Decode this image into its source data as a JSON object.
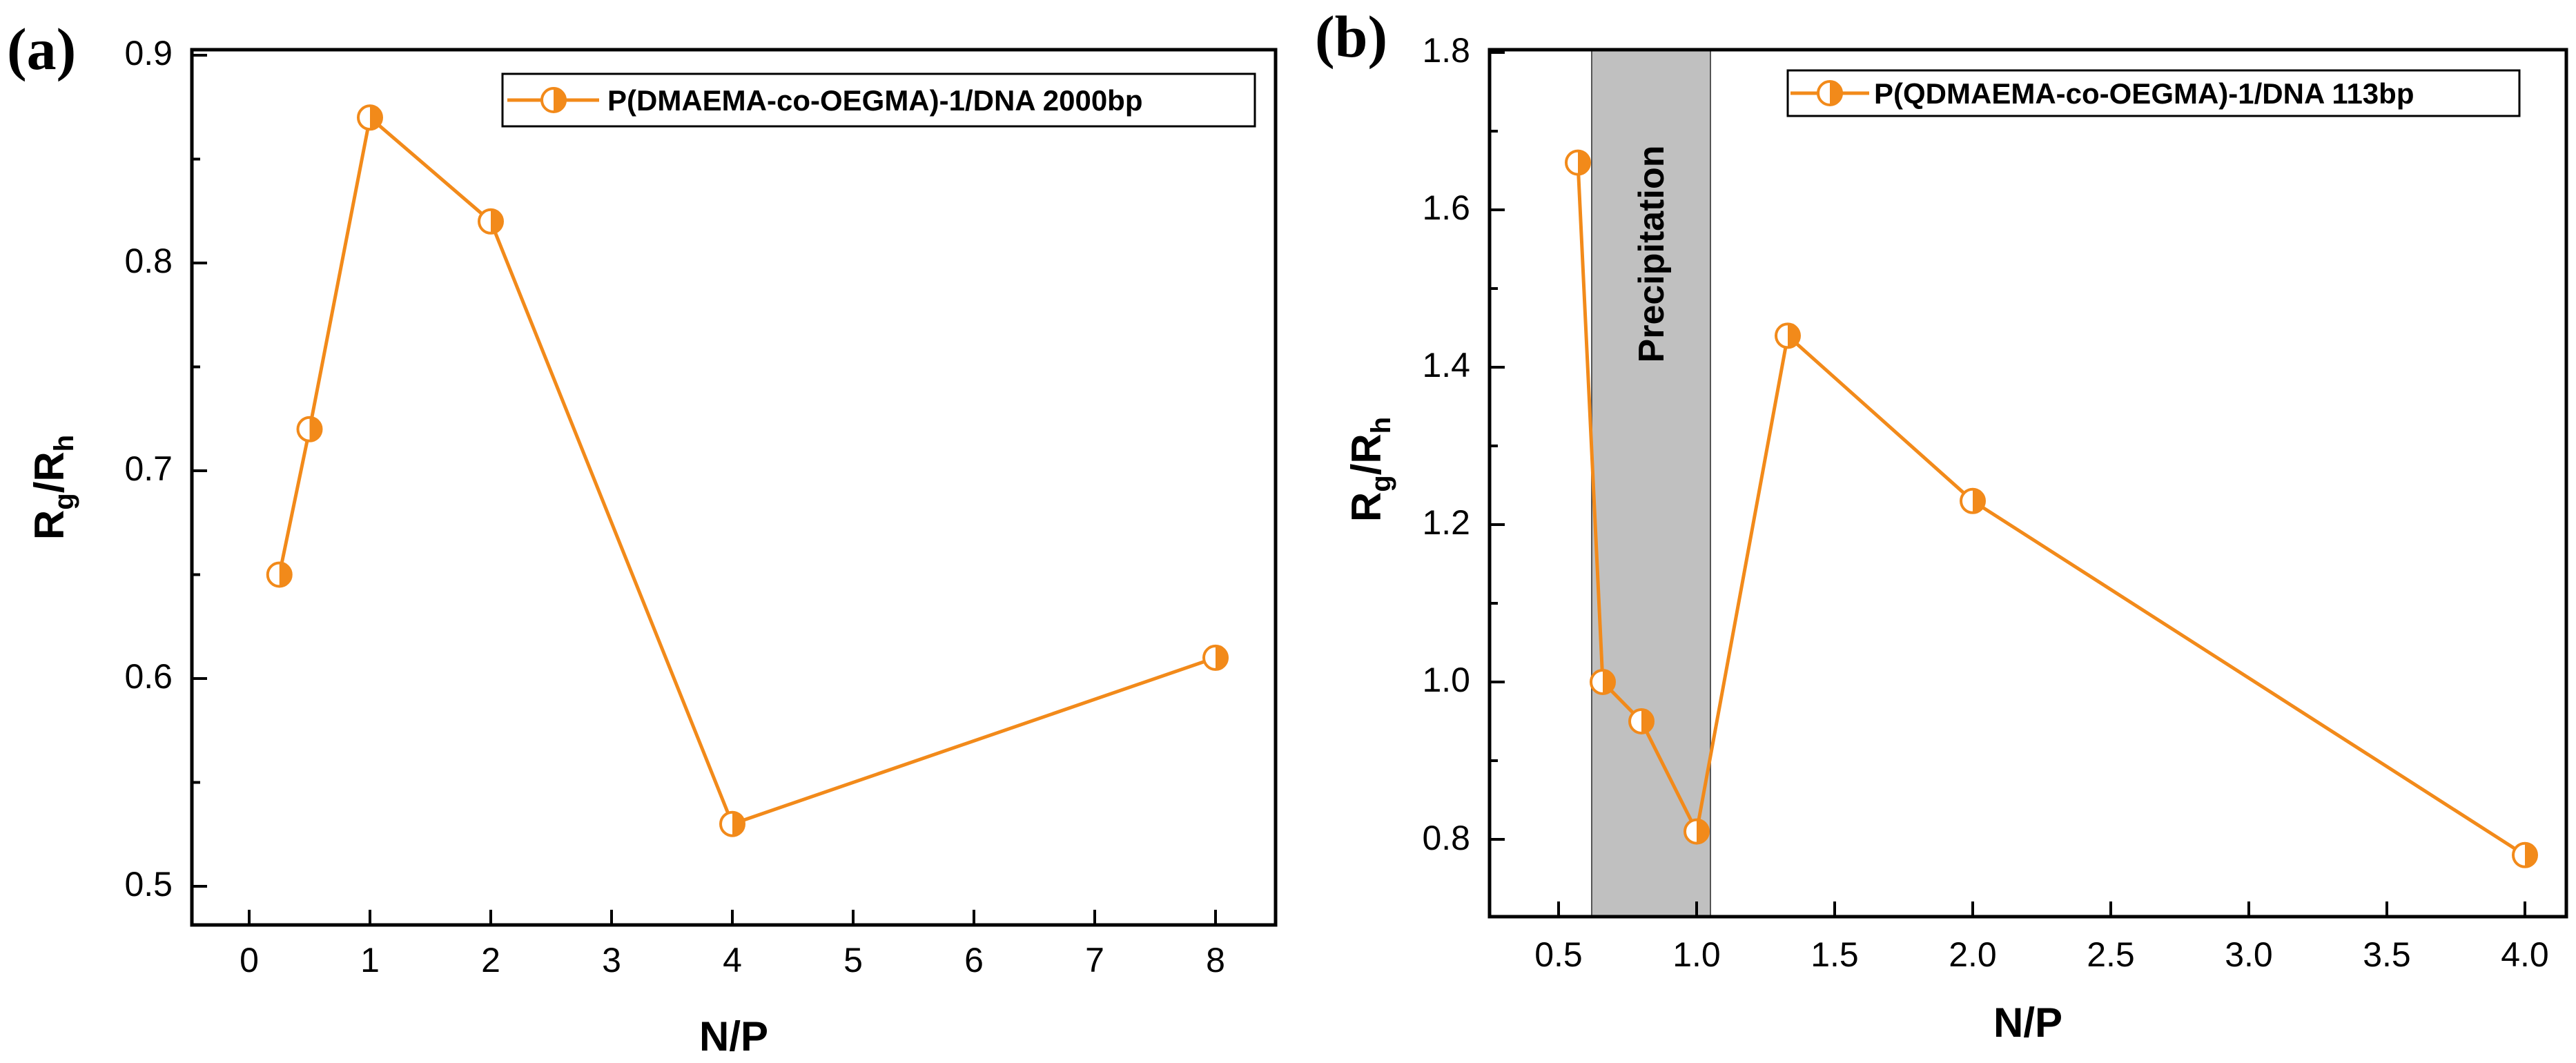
{
  "colors": {
    "series": "#F28A1A",
    "shade": "#C0C0C0",
    "axis": "#000000"
  },
  "chart_data": [
    {
      "panel": "(a)",
      "type": "line",
      "x_scale": "categorical",
      "categories": [
        "0",
        "1",
        "2",
        "3",
        "4",
        "5",
        "6",
        "7",
        "8"
      ],
      "xlabel": "N/P",
      "ylabel_main": "R",
      "ylabel_sub1": "g",
      "ylabel_mid": "/R",
      "ylabel_sub2": "h",
      "xlim": [
        -0.5,
        8.5
      ],
      "ylim": [
        0.48,
        0.9
      ],
      "yticks": [
        "0.5",
        "0.6",
        "0.7",
        "0.8",
        "0.9"
      ],
      "legend_position": "top-right",
      "series": [
        {
          "name": "P(DMAEMA-co-OEGMA)-1/DNA 2000bp",
          "x": [
            0.25,
            0.5,
            1,
            2,
            4,
            8
          ],
          "x_pos": [
            0.25,
            0.5,
            1,
            2,
            4,
            8
          ],
          "y": [
            0.65,
            0.72,
            0.87,
            0.82,
            0.53,
            0.61
          ]
        }
      ]
    },
    {
      "panel": "(b)",
      "type": "line",
      "x_scale": "categorical",
      "xlabel": "N/P",
      "ylabel_main": "R",
      "ylabel_sub1": "g",
      "ylabel_mid": "/R",
      "ylabel_sub2": "h",
      "xticks": [
        "0.5",
        "1.0",
        "1.5",
        "2.0",
        "2.5",
        "3.0",
        "3.5",
        "4.0"
      ],
      "xlim": [
        0.3,
        4.2
      ],
      "ylim": [
        0.7,
        1.8
      ],
      "yticks": [
        "0.8",
        "1.0",
        "1.2",
        "1.4",
        "1.6",
        "1.8"
      ],
      "legend_position": "top-right",
      "annotation": {
        "text": "Precipitation",
        "x_range": [
          0.62,
          1.05
        ]
      },
      "series": [
        {
          "name": "P(QDMAEMA-co-OEGMA)-1/DNA 113bp",
          "x": [
            0.57,
            0.66,
            0.8,
            1.0,
            1.33,
            2.0,
            4.0
          ],
          "x_pos": [
            0.57,
            0.66,
            0.8,
            1.0,
            1.33,
            2.0,
            4.0
          ],
          "y": [
            1.66,
            1.0,
            0.95,
            0.81,
            1.44,
            1.23,
            0.78
          ]
        }
      ]
    }
  ]
}
